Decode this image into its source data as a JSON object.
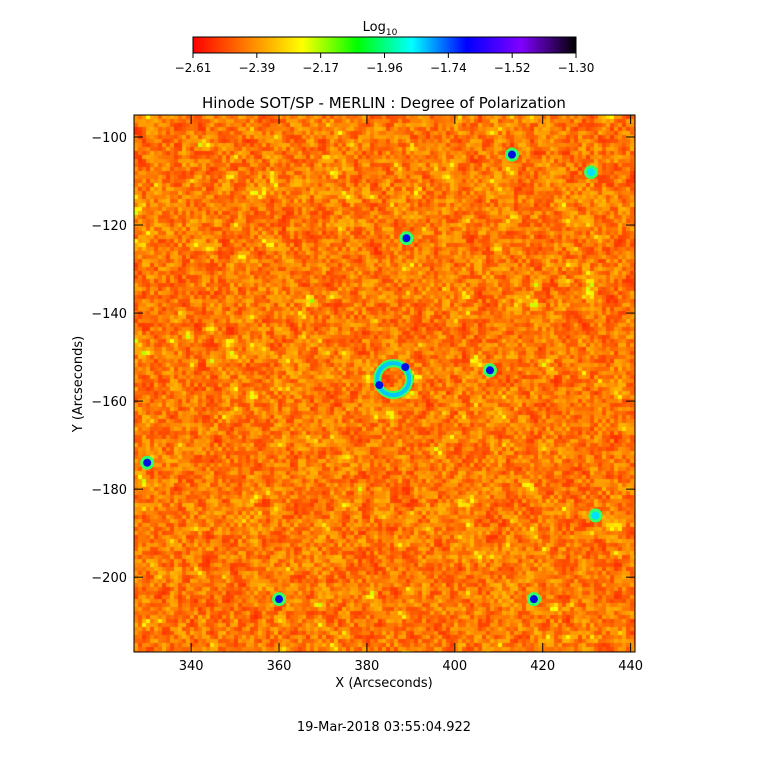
{
  "colorbar": {
    "label": "Log",
    "label_subscript": "10",
    "ticks": [
      "-2.61",
      "-2.39",
      "-2.17",
      "-1.96",
      "-1.74",
      "-1.52",
      "-1.30"
    ],
    "range": [
      -2.61,
      -1.3
    ],
    "colormap": [
      "#ff0000",
      "#ff8000",
      "#ffff00",
      "#00ff00",
      "#00ffff",
      "#0000ff",
      "#8000ff",
      "#000000"
    ]
  },
  "chart_data": {
    "type": "heatmap",
    "title": "Hinode SOT/SP - MERLIN : Degree of Polarization",
    "xlabel": "X (Arcseconds)",
    "ylabel": "Y (Arcseconds)",
    "xlim": [
      327,
      441
    ],
    "ylim": [
      -217,
      -95
    ],
    "xticks": [
      340,
      360,
      380,
      400,
      420,
      440
    ],
    "yticks": [
      -100,
      -120,
      -140,
      -160,
      -180,
      -200
    ],
    "value_unit": "Log10 degree of polarization",
    "value_range": [
      -2.61,
      -1.3
    ],
    "background_level": "low (red/orange, about -2.55 to -2.35)",
    "features": [
      {
        "name": "enhanced-polarization-ring",
        "x": 386,
        "y": -155,
        "level": "high (blue)"
      },
      {
        "name": "knot",
        "x": 408,
        "y": -153,
        "level": "high (blue)"
      },
      {
        "name": "knot",
        "x": 389,
        "y": -123,
        "level": "high (blue)"
      },
      {
        "name": "knot",
        "x": 360,
        "y": -205,
        "level": "high (blue)"
      },
      {
        "name": "knot",
        "x": 418,
        "y": -205,
        "level": "high (blue)"
      },
      {
        "name": "knot",
        "x": 432,
        "y": -186,
        "level": "medium (cyan)"
      },
      {
        "name": "knot",
        "x": 330,
        "y": -174,
        "level": "high (blue)"
      },
      {
        "name": "knot",
        "x": 413,
        "y": -104,
        "level": "high (blue)"
      },
      {
        "name": "knot",
        "x": 431,
        "y": -108,
        "level": "medium (cyan)"
      }
    ]
  },
  "timestamp": "19-Mar-2018 03:55:04.922"
}
